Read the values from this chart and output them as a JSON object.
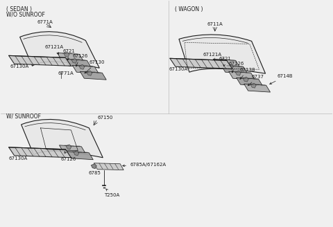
{
  "bg_color": "#f0f0f0",
  "line_color": "#1a1a1a",
  "text_color": "#1a1a1a",
  "gray_fill": "#c8c8c8",
  "dark_fill": "#888888",
  "s1_label1": "( SEDAN )",
  "s1_label2": "W/O SUNROOF",
  "s1_top_part": "6771A",
  "s1_mid_part": "6771A",
  "s1_bot_part": "67130A",
  "s1_rail_parts": [
    "67121A",
    "6721",
    "67126",
    "67130"
  ],
  "s2_label": "( WAGON )",
  "s2_top_part": "6711A",
  "s2_bot_part": "67130A",
  "s2_rail_parts": [
    "67121A",
    "6721",
    "67126",
    "67138",
    "6737",
    "6714B"
  ],
  "s3_label": "W/ SUNROOF",
  "s3_top_part": "67150",
  "s3_mid_part1": "67126",
  "s3_mid_part2": "6785",
  "s3_detail_part": "6785A/67162A",
  "s3_bot_part": "67130A",
  "s3_bolt_part": "T250A"
}
